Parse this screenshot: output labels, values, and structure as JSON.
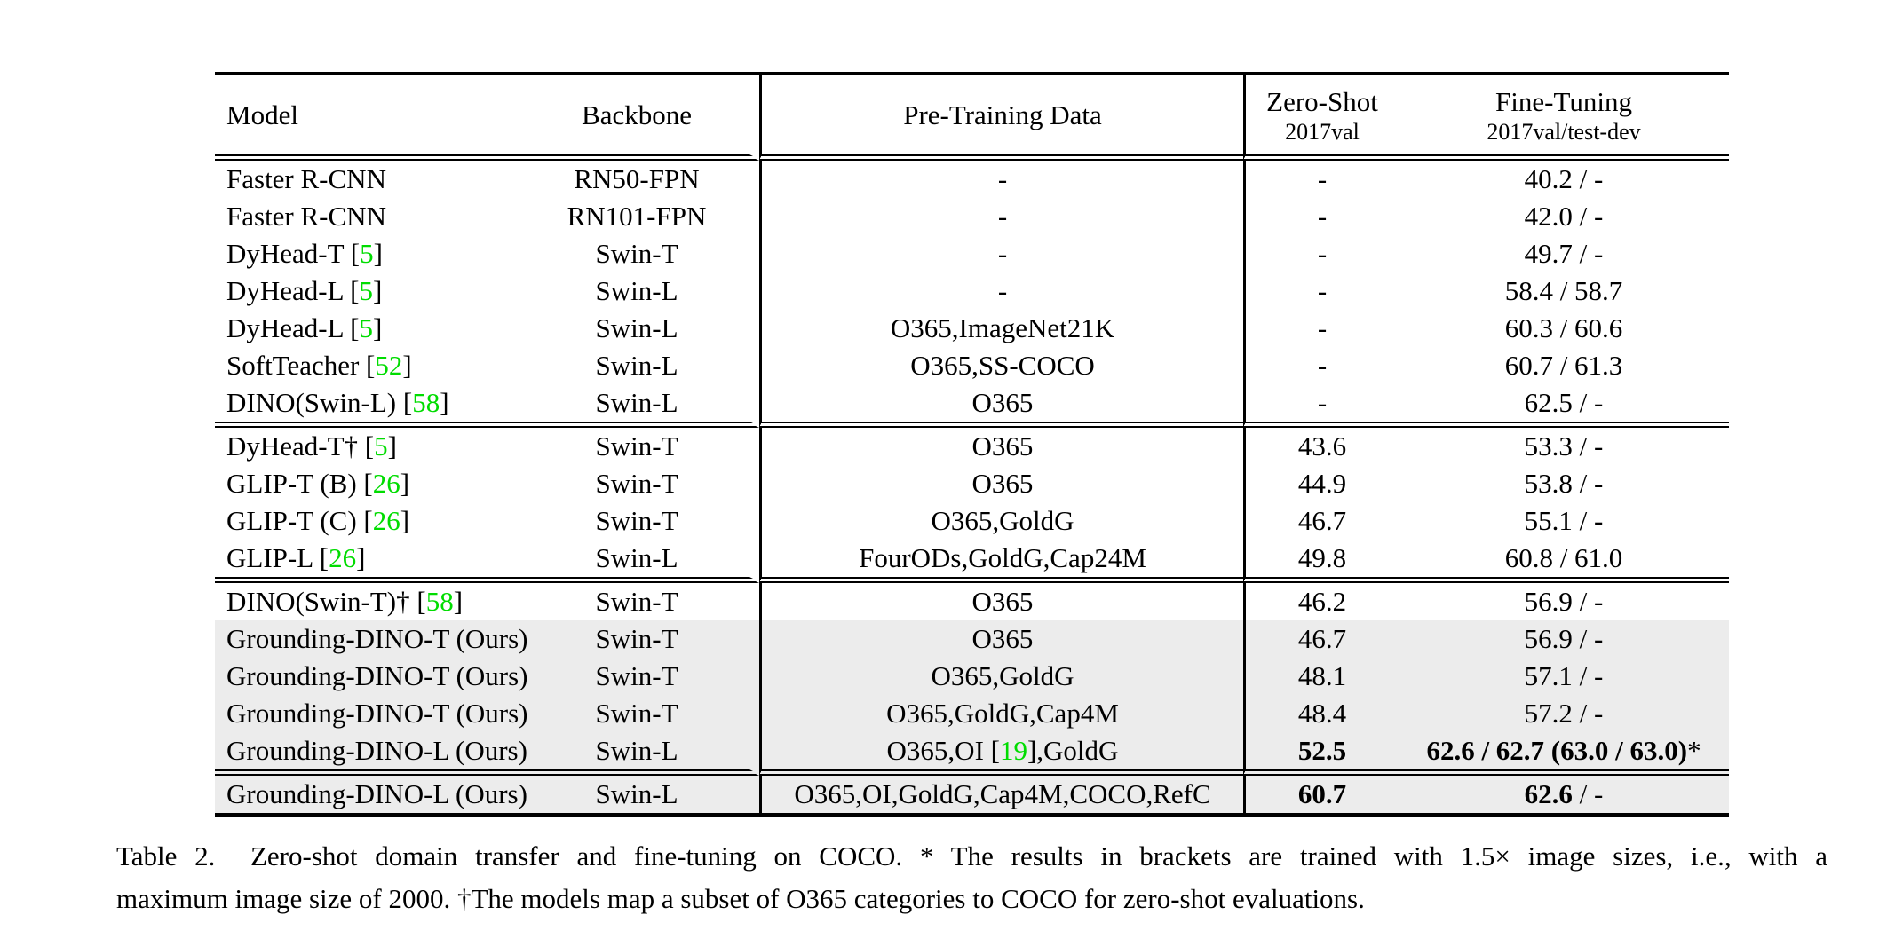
{
  "colors": {
    "background": "#ffffff",
    "text": "#000000",
    "cite_green": "#00dc00",
    "row_highlight": "#ececec"
  },
  "table": {
    "columns": [
      {
        "label": "Model"
      },
      {
        "label": "Backbone"
      },
      {
        "label": "Pre-Training Data"
      },
      {
        "label": "Zero-Shot",
        "sublabel": "2017val"
      },
      {
        "label": "Fine-Tuning",
        "sublabel": "2017val/test-dev"
      }
    ],
    "groups": [
      {
        "rows": [
          {
            "model_pre": "Faster R-CNN",
            "model_cite": "",
            "model_post": "",
            "backbone": "RN50-FPN",
            "pt_pre": "-",
            "pt_cite": "",
            "pt_post": "",
            "zs": "-",
            "zs_bold": false,
            "ft_bold": "",
            "ft_normal": "40.2 / -",
            "highlight": false
          },
          {
            "model_pre": "Faster R-CNN",
            "model_cite": "",
            "model_post": "",
            "backbone": "RN101-FPN",
            "pt_pre": "-",
            "pt_cite": "",
            "pt_post": "",
            "zs": "-",
            "zs_bold": false,
            "ft_bold": "",
            "ft_normal": "42.0 / -",
            "highlight": false
          },
          {
            "model_pre": "DyHead-T [",
            "model_cite": "5",
            "model_post": "]",
            "backbone": "Swin-T",
            "pt_pre": "-",
            "pt_cite": "",
            "pt_post": "",
            "zs": "-",
            "zs_bold": false,
            "ft_bold": "",
            "ft_normal": "49.7 / -",
            "highlight": false
          },
          {
            "model_pre": "DyHead-L [",
            "model_cite": "5",
            "model_post": "]",
            "backbone": "Swin-L",
            "pt_pre": "-",
            "pt_cite": "",
            "pt_post": "",
            "zs": "-",
            "zs_bold": false,
            "ft_bold": "",
            "ft_normal": "58.4 / 58.7",
            "highlight": false
          },
          {
            "model_pre": "DyHead-L [",
            "model_cite": "5",
            "model_post": "]",
            "backbone": "Swin-L",
            "pt_pre": "O365,ImageNet21K",
            "pt_cite": "",
            "pt_post": "",
            "zs": "-",
            "zs_bold": false,
            "ft_bold": "",
            "ft_normal": "60.3 / 60.6",
            "highlight": false
          },
          {
            "model_pre": "SoftTeacher [",
            "model_cite": "52",
            "model_post": "]",
            "backbone": "Swin-L",
            "pt_pre": "O365,SS-COCO",
            "pt_cite": "",
            "pt_post": "",
            "zs": "-",
            "zs_bold": false,
            "ft_bold": "",
            "ft_normal": "60.7 / 61.3",
            "highlight": false
          },
          {
            "model_pre": "DINO(Swin-L) [",
            "model_cite": "58",
            "model_post": "]",
            "backbone": "Swin-L",
            "pt_pre": "O365",
            "pt_cite": "",
            "pt_post": "",
            "zs": "-",
            "zs_bold": false,
            "ft_bold": "",
            "ft_normal": "62.5 / -",
            "highlight": false
          }
        ]
      },
      {
        "rows": [
          {
            "model_pre": "DyHead-T† [",
            "model_cite": "5",
            "model_post": "]",
            "backbone": "Swin-T",
            "pt_pre": "O365",
            "pt_cite": "",
            "pt_post": "",
            "zs": "43.6",
            "zs_bold": false,
            "ft_bold": "",
            "ft_normal": "53.3 / -",
            "highlight": false
          },
          {
            "model_pre": "GLIP-T (B) [",
            "model_cite": "26",
            "model_post": "]",
            "backbone": "Swin-T",
            "pt_pre": "O365",
            "pt_cite": "",
            "pt_post": "",
            "zs": "44.9",
            "zs_bold": false,
            "ft_bold": "",
            "ft_normal": "53.8 / -",
            "highlight": false
          },
          {
            "model_pre": "GLIP-T (C) [",
            "model_cite": "26",
            "model_post": "]",
            "backbone": "Swin-T",
            "pt_pre": "O365,GoldG",
            "pt_cite": "",
            "pt_post": "",
            "zs": "46.7",
            "zs_bold": false,
            "ft_bold": "",
            "ft_normal": "55.1 / -",
            "highlight": false
          },
          {
            "model_pre": "GLIP-L [",
            "model_cite": "26",
            "model_post": "]",
            "backbone": "Swin-L",
            "pt_pre": "FourODs,GoldG,Cap24M",
            "pt_cite": "",
            "pt_post": "",
            "zs": "49.8",
            "zs_bold": false,
            "ft_bold": "",
            "ft_normal": "60.8 / 61.0",
            "highlight": false
          }
        ]
      },
      {
        "rows": [
          {
            "model_pre": "DINO(Swin-T)† [",
            "model_cite": "58",
            "model_post": "]",
            "backbone": "Swin-T",
            "pt_pre": "O365",
            "pt_cite": "",
            "pt_post": "",
            "zs": "46.2",
            "zs_bold": false,
            "ft_bold": "",
            "ft_normal": "56.9 / -",
            "highlight": false
          },
          {
            "model_pre": "Grounding-DINO-T (Ours)",
            "model_cite": "",
            "model_post": "",
            "backbone": "Swin-T",
            "pt_pre": "O365",
            "pt_cite": "",
            "pt_post": "",
            "zs": "46.7",
            "zs_bold": false,
            "ft_bold": "",
            "ft_normal": "56.9 / -",
            "highlight": true
          },
          {
            "model_pre": "Grounding-DINO-T (Ours)",
            "model_cite": "",
            "model_post": "",
            "backbone": "Swin-T",
            "pt_pre": "O365,GoldG",
            "pt_cite": "",
            "pt_post": "",
            "zs": "48.1",
            "zs_bold": false,
            "ft_bold": "",
            "ft_normal": "57.1 / -",
            "highlight": true
          },
          {
            "model_pre": "Grounding-DINO-T (Ours)",
            "model_cite": "",
            "model_post": "",
            "backbone": "Swin-T",
            "pt_pre": "O365,GoldG,Cap4M",
            "pt_cite": "",
            "pt_post": "",
            "zs": "48.4",
            "zs_bold": false,
            "ft_bold": "",
            "ft_normal": "57.2 / -",
            "highlight": true
          },
          {
            "model_pre": "Grounding-DINO-L (Ours)",
            "model_cite": "",
            "model_post": "",
            "backbone": "Swin-L",
            "pt_pre": "O365,OI [",
            "pt_cite": "19",
            "pt_post": "],GoldG",
            "zs": "52.5",
            "zs_bold": true,
            "ft_bold": "62.6 / 62.7 (63.0 / 63.0)",
            "ft_normal": "*",
            "highlight": true
          }
        ]
      },
      {
        "rows": [
          {
            "model_pre": "Grounding-DINO-L (Ours)",
            "model_cite": "",
            "model_post": "",
            "backbone": "Swin-L",
            "pt_pre": "O365,OI,GoldG,Cap4M,COCO,RefC",
            "pt_cite": "",
            "pt_post": "",
            "zs": "60.7",
            "zs_bold": true,
            "ft_bold": "62.6",
            "ft_normal": " / -",
            "highlight": true
          }
        ]
      }
    ]
  },
  "caption": {
    "line1": "Table 2.  Zero-shot domain transfer and fine-tuning on COCO. * The results in brackets are trained with 1.5× image sizes, i.e., with a",
    "line2": "maximum image size of 2000. †The models map a subset of O365 categories to COCO for zero-shot evaluations."
  }
}
